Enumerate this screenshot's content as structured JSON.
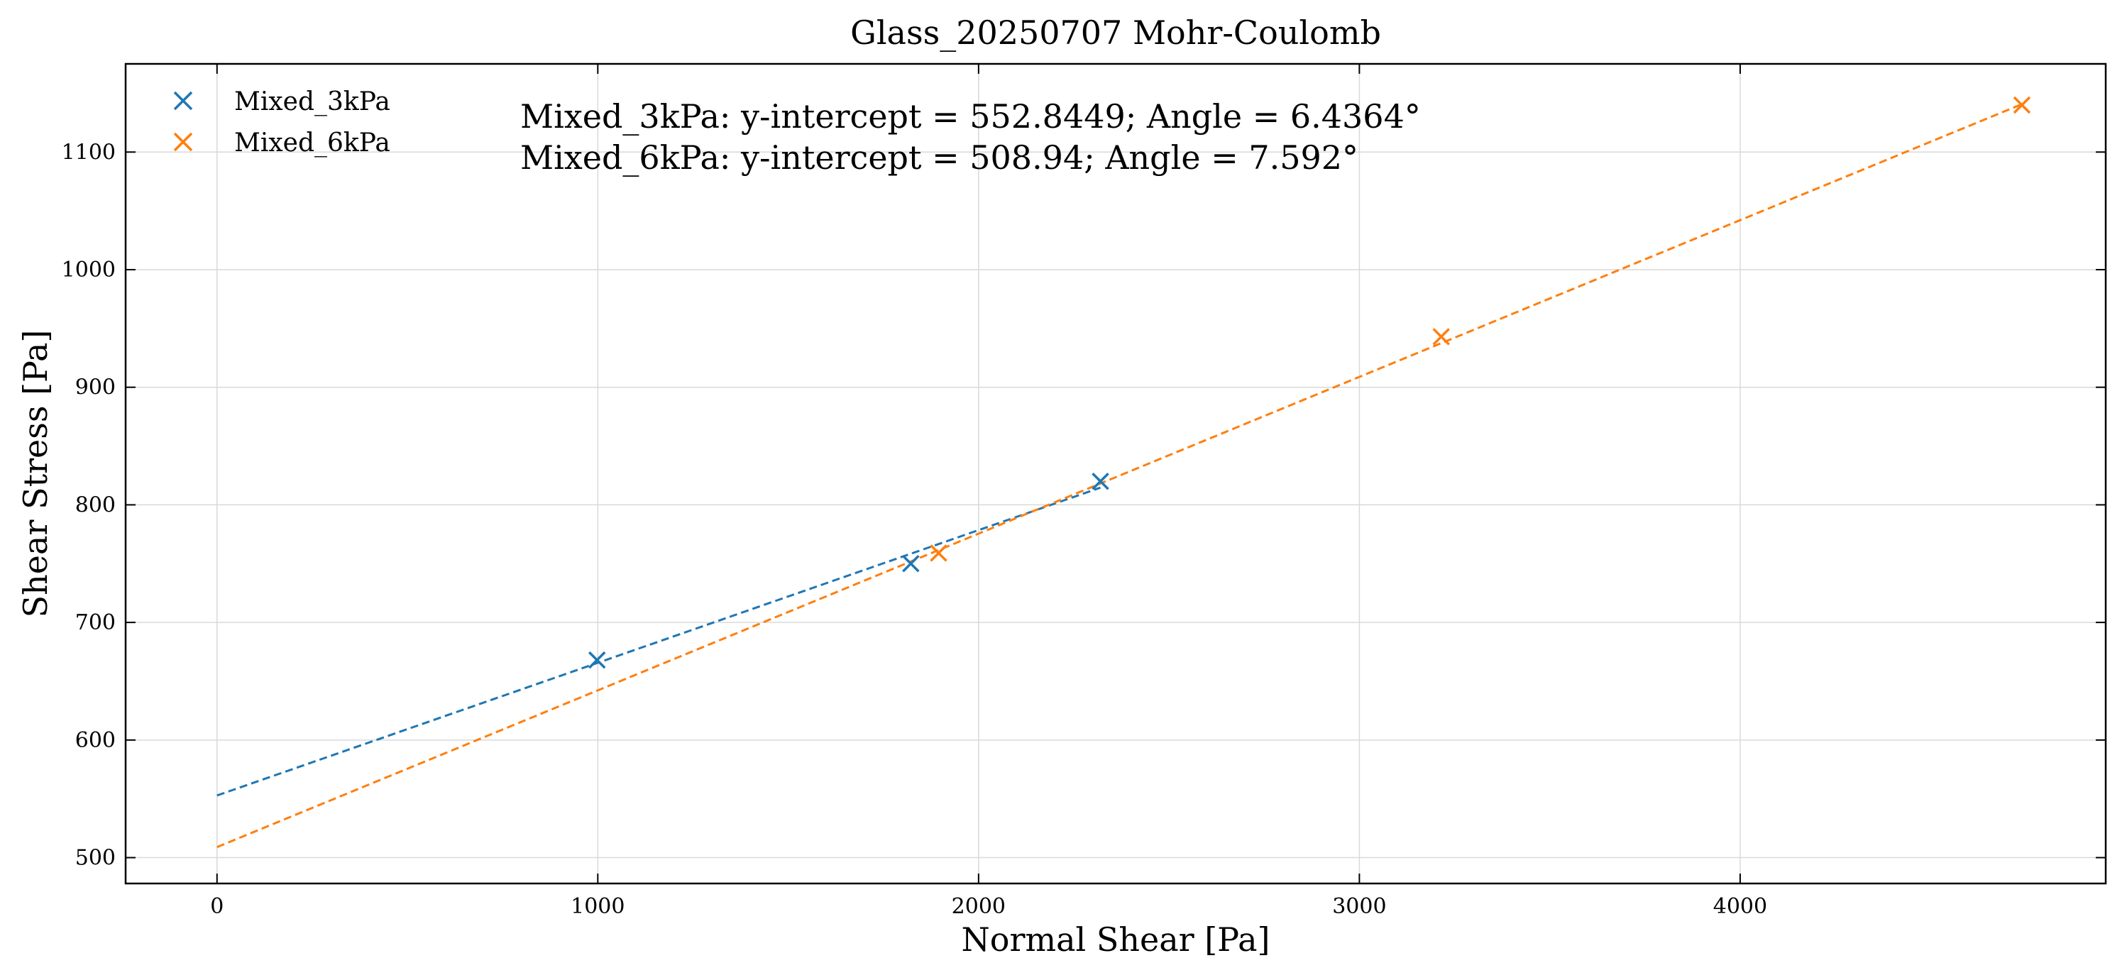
{
  "chart_data": {
    "type": "scatter",
    "title": "Glass_20250707 Mohr-Coulomb",
    "xlabel": "Normal Shear [Pa]",
    "ylabel": "Shear Stress [Pa]",
    "xlim": [
      -240,
      4960
    ],
    "ylim": [
      478,
      1175
    ],
    "xticks": [
      0,
      1000,
      2000,
      3000,
      4000
    ],
    "yticks": [
      500,
      600,
      700,
      800,
      900,
      1000,
      1100
    ],
    "grid": true,
    "legend_position": "top-left",
    "series": [
      {
        "name": "Mixed_3kPa",
        "color": "#1f77b4",
        "x": [
          998,
          1822,
          2320
        ],
        "y": [
          668,
          750,
          820
        ],
        "fit": {
          "x0": 0,
          "x1": 2320,
          "intercept": 552.8449,
          "slope": 0.11283
        }
      },
      {
        "name": "Mixed_6kPa",
        "color": "#ff7f0e",
        "x": [
          1895,
          3215,
          4740
        ],
        "y": [
          759,
          943,
          1140
        ],
        "fit": {
          "x0": 0,
          "x1": 4740,
          "intercept": 508.94,
          "slope": 0.13329
        }
      }
    ],
    "annotations": [
      "Mixed_3kPa: y-intercept = 552.8449; Angle = 6.4364°",
      "Mixed_6kPa: y-intercept = 508.94; Angle = 7.592°"
    ]
  }
}
